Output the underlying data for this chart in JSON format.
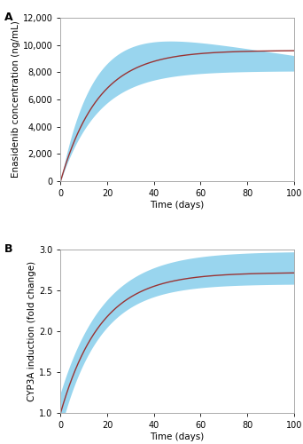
{
  "panel_A": {
    "label": "A",
    "xlabel": "Time (days)",
    "ylabel": "Enasidenib concentration (ng/mL)",
    "xlim": [
      0,
      100
    ],
    "ylim": [
      0,
      12000
    ],
    "yticks": [
      0,
      2000,
      4000,
      6000,
      8000,
      10000,
      12000
    ],
    "xticks": [
      0,
      20,
      40,
      60,
      80,
      100
    ],
    "shade_color": "#87CEEB",
    "shade_alpha": 0.85,
    "line_color": "#993333",
    "line_width": 1.0
  },
  "panel_B": {
    "label": "B",
    "xlabel": "Time (days)",
    "ylabel": "CYP3A induction (fold change)",
    "xlim": [
      0,
      100
    ],
    "ylim": [
      1.0,
      3.0
    ],
    "yticks": [
      1.0,
      1.5,
      2.0,
      2.5,
      3.0
    ],
    "xticks": [
      0,
      20,
      40,
      60,
      80,
      100
    ],
    "shade_color": "#87CEEB",
    "shade_alpha": 0.85,
    "line_color": "#993333",
    "line_width": 1.0
  },
  "background_color": "#ffffff",
  "axes_color": "#aaaaaa",
  "tick_label_fontsize": 7,
  "axis_label_fontsize": 7.5,
  "panel_label_fontsize": 9
}
